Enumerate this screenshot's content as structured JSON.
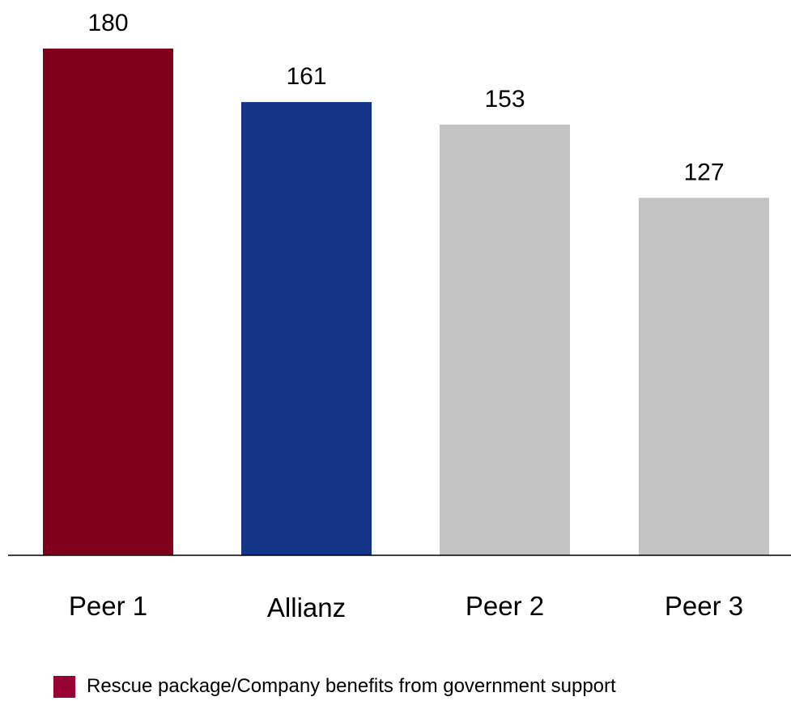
{
  "chart_data": {
    "type": "bar",
    "categories": [
      "Peer 1",
      "Allianz",
      "Peer 2",
      "Peer 3"
    ],
    "values": [
      180,
      161,
      153,
      127
    ],
    "bar_colors": [
      "#80001c",
      "#133487",
      "#c3c3c3",
      "#c3c3c3"
    ],
    "value_labels": [
      "180",
      "161",
      "153",
      "127"
    ],
    "title": "",
    "xlabel": "",
    "ylabel": "",
    "ylim": [
      0,
      180
    ],
    "grid": false,
    "legend": {
      "position": "bottom-left",
      "entries": [
        {
          "label": "Rescue package/Company benefits from government support",
          "color": "#990033"
        }
      ]
    }
  }
}
